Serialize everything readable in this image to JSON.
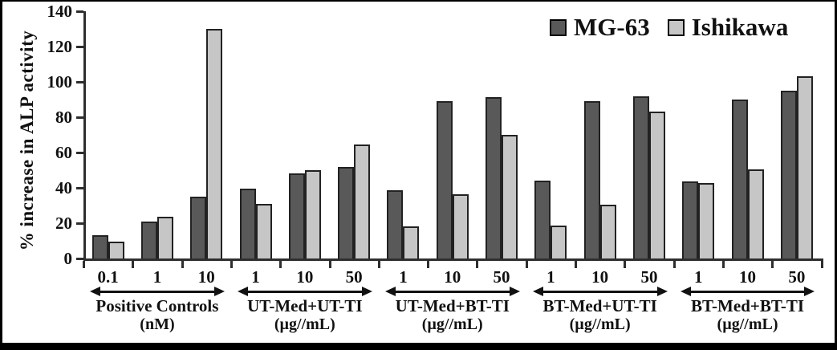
{
  "figure": {
    "background": "#ffffff",
    "border_color": "#000000"
  },
  "colors": {
    "mg63_fill": "#595959",
    "ishikawa_fill": "#c6c6c6",
    "bar_border": "#222222",
    "axis": "#2e2e2e",
    "text": "#111111"
  },
  "chart_data": {
    "type": "bar",
    "title": "",
    "xlabel": "",
    "ylabel": "% increase in ALP activity",
    "ylim": [
      0,
      140
    ],
    "yticks": [
      0,
      20,
      40,
      60,
      80,
      100,
      120,
      140
    ],
    "grid": false,
    "legend_position": "top-right",
    "groups": [
      {
        "label": "Positive Controls",
        "unit": "(nM)",
        "doses": [
          "0.1",
          "1",
          "10"
        ]
      },
      {
        "label": "UT-Med+UT-TI",
        "unit": "(µg//mL)",
        "doses": [
          "1",
          "10",
          "50"
        ]
      },
      {
        "label": "UT-Med+BT-TI",
        "unit": "(µg//mL)",
        "doses": [
          "1",
          "10",
          "50"
        ]
      },
      {
        "label": "BT-Med+UT-TI",
        "unit": "(µg//mL)",
        "doses": [
          "1",
          "10",
          "50"
        ]
      },
      {
        "label": "BT-Med+BT-TI",
        "unit": "(µg//mL)",
        "doses": [
          "1",
          "10",
          "50"
        ]
      }
    ],
    "series": [
      {
        "name": "MG-63",
        "color": "#595959",
        "values": [
          13,
          21,
          35,
          39.5,
          48,
          52,
          38.5,
          89,
          91.5,
          44,
          89,
          92,
          43.5,
          90,
          95
        ]
      },
      {
        "name": "Ishikawa",
        "color": "#c6c6c6",
        "values": [
          9.5,
          23.5,
          130,
          31,
          50,
          64.5,
          18,
          36.5,
          70,
          18.5,
          30.5,
          83,
          42.5,
          50.5,
          103
        ]
      }
    ]
  }
}
